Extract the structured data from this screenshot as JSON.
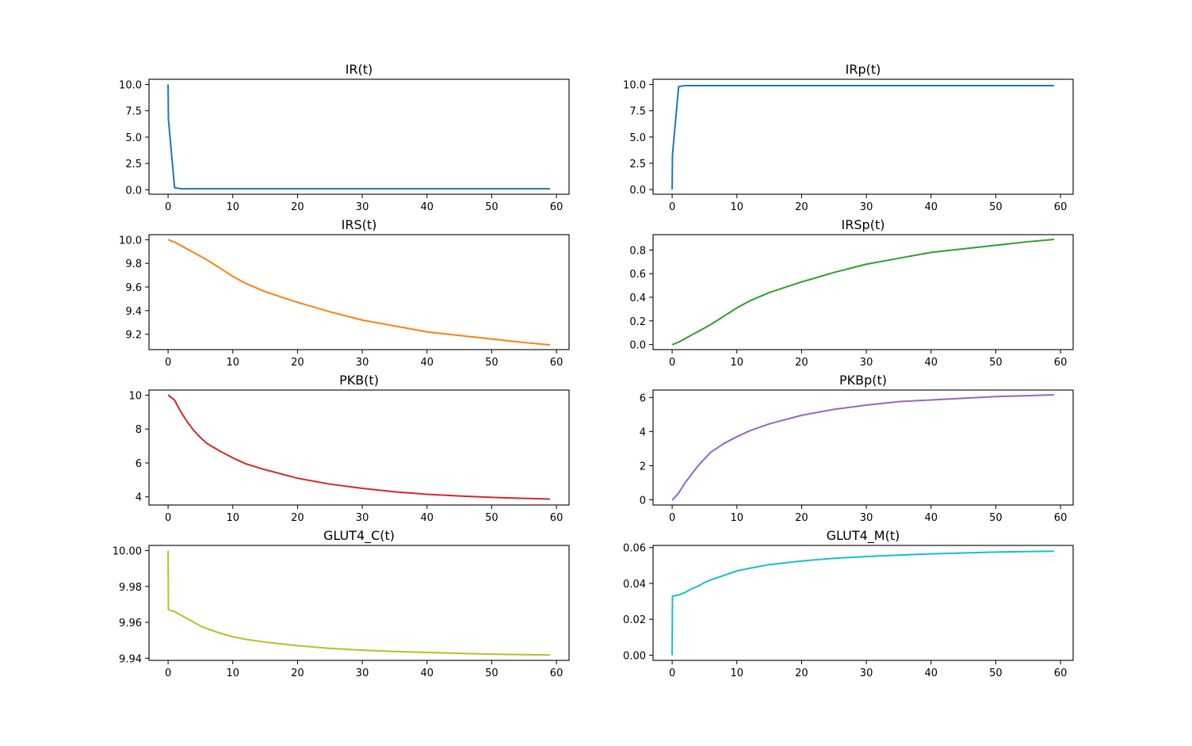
{
  "chart_data": [
    {
      "type": "line",
      "title": "IR(t)",
      "color": "#1f77b4",
      "xlim": [
        -2.95,
        61.95
      ],
      "ylim": [
        -0.42,
        10.49
      ],
      "xticks": [
        0,
        10,
        20,
        30,
        40,
        50,
        60
      ],
      "xtick_labels": [
        "0",
        "10",
        "20",
        "30",
        "40",
        "50",
        "60"
      ],
      "yticks": [
        0,
        2.5,
        5,
        7.5,
        10
      ],
      "ytick_labels": [
        "0.0",
        "2.5",
        "5.0",
        "7.5",
        "10.0"
      ],
      "x": [
        0,
        0.05,
        1,
        2,
        3,
        4,
        5,
        6,
        8,
        10,
        12,
        15,
        20,
        25,
        30,
        35,
        40,
        45,
        50,
        55,
        59
      ],
      "y": [
        10,
        6.7,
        0.2,
        0.1,
        0.1,
        0.1,
        0.1,
        0.1,
        0.1,
        0.1,
        0.1,
        0.1,
        0.1,
        0.1,
        0.1,
        0.1,
        0.1,
        0.1,
        0.1,
        0.1,
        0.1
      ]
    },
    {
      "type": "line",
      "title": "IRp(t)",
      "color": "#1f77b4",
      "xlim": [
        -2.95,
        61.95
      ],
      "ylim": [
        -0.45,
        10.5
      ],
      "xticks": [
        0,
        10,
        20,
        30,
        40,
        50,
        60
      ],
      "xtick_labels": [
        "0",
        "10",
        "20",
        "30",
        "40",
        "50",
        "60"
      ],
      "yticks": [
        0,
        2.5,
        5,
        7.5,
        10
      ],
      "ytick_labels": [
        "0.0",
        "2.5",
        "5.0",
        "7.5",
        "10.0"
      ],
      "x": [
        0,
        0.05,
        1,
        2,
        3,
        4,
        5,
        6,
        8,
        10,
        12,
        15,
        20,
        25,
        30,
        35,
        40,
        45,
        50,
        55,
        59
      ],
      "y": [
        0,
        3.3,
        9.8,
        9.9,
        9.9,
        9.9,
        9.9,
        9.9,
        9.9,
        9.9,
        9.9,
        9.9,
        9.9,
        9.9,
        9.9,
        9.9,
        9.9,
        9.9,
        9.9,
        9.9,
        9.9
      ]
    },
    {
      "type": "line",
      "title": "IRS(t)",
      "color": "#ff7f0e",
      "xlim": [
        -2.95,
        61.95
      ],
      "ylim": [
        9.07,
        10.043
      ],
      "xticks": [
        0,
        10,
        20,
        30,
        40,
        50,
        60
      ],
      "xtick_labels": [
        "0",
        "10",
        "20",
        "30",
        "40",
        "50",
        "60"
      ],
      "yticks": [
        9.2,
        9.4,
        9.6,
        9.8,
        10.0
      ],
      "ytick_labels": [
        "9.2",
        "9.4",
        "9.6",
        "9.8",
        "10.0"
      ],
      "x": [
        0,
        0.05,
        1,
        2,
        3,
        4,
        5,
        6,
        8,
        10,
        12,
        15,
        20,
        25,
        30,
        35,
        40,
        45,
        50,
        55,
        59
      ],
      "y": [
        10,
        10,
        9.98,
        9.95,
        9.92,
        9.89,
        9.86,
        9.83,
        9.76,
        9.69,
        9.63,
        9.56,
        9.47,
        9.39,
        9.32,
        9.27,
        9.22,
        9.19,
        9.16,
        9.13,
        9.11
      ]
    },
    {
      "type": "line",
      "title": "IRSp(t)",
      "color": "#2ca02c",
      "xlim": [
        -2.95,
        61.95
      ],
      "ylim": [
        -0.043,
        0.93
      ],
      "xticks": [
        0,
        10,
        20,
        30,
        40,
        50,
        60
      ],
      "xtick_labels": [
        "0",
        "10",
        "20",
        "30",
        "40",
        "50",
        "60"
      ],
      "yticks": [
        0,
        0.2,
        0.4,
        0.6,
        0.8
      ],
      "ytick_labels": [
        "0.0",
        "0.2",
        "0.4",
        "0.6",
        "0.8"
      ],
      "x": [
        0,
        0.05,
        1,
        2,
        3,
        4,
        5,
        6,
        8,
        10,
        12,
        15,
        20,
        25,
        30,
        35,
        40,
        45,
        50,
        55,
        59
      ],
      "y": [
        0,
        0,
        0.02,
        0.05,
        0.08,
        0.11,
        0.14,
        0.17,
        0.24,
        0.31,
        0.37,
        0.44,
        0.53,
        0.61,
        0.68,
        0.73,
        0.78,
        0.81,
        0.84,
        0.87,
        0.89
      ]
    },
    {
      "type": "line",
      "title": "PKB(t)",
      "color": "#d62728",
      "xlim": [
        -2.95,
        61.95
      ],
      "ylim": [
        3.52,
        10.3
      ],
      "xticks": [
        0,
        10,
        20,
        30,
        40,
        50,
        60
      ],
      "xtick_labels": [
        "0",
        "10",
        "20",
        "30",
        "40",
        "50",
        "60"
      ],
      "yticks": [
        4,
        6,
        8,
        10
      ],
      "ytick_labels": [
        "4",
        "6",
        "8",
        "10"
      ],
      "x": [
        0,
        0.05,
        1,
        2,
        3,
        4,
        5,
        6,
        8,
        10,
        12,
        15,
        20,
        25,
        30,
        35,
        40,
        45,
        50,
        55,
        59
      ],
      "y": [
        10,
        10,
        9.7,
        9.0,
        8.4,
        7.9,
        7.5,
        7.15,
        6.7,
        6.3,
        5.95,
        5.6,
        5.1,
        4.75,
        4.5,
        4.3,
        4.15,
        4.05,
        3.97,
        3.91,
        3.87
      ]
    },
    {
      "type": "line",
      "title": "PKBp(t)",
      "color": "#9467bd",
      "xlim": [
        -2.95,
        61.95
      ],
      "ylim": [
        -0.3,
        6.43
      ],
      "xticks": [
        0,
        10,
        20,
        30,
        40,
        50,
        60
      ],
      "xtick_labels": [
        "0",
        "10",
        "20",
        "30",
        "40",
        "50",
        "60"
      ],
      "yticks": [
        0,
        2,
        4,
        6
      ],
      "ytick_labels": [
        "0",
        "2",
        "4",
        "6"
      ],
      "x": [
        0,
        0.05,
        1,
        2,
        3,
        4,
        5,
        6,
        8,
        10,
        12,
        15,
        20,
        25,
        30,
        35,
        40,
        45,
        50,
        55,
        59
      ],
      "y": [
        0,
        0,
        0.4,
        1.0,
        1.5,
        2.0,
        2.4,
        2.8,
        3.3,
        3.7,
        4.05,
        4.45,
        4.95,
        5.3,
        5.55,
        5.75,
        5.85,
        5.95,
        6.05,
        6.1,
        6.15
      ]
    },
    {
      "type": "line",
      "title": "GLUT4_C(t)",
      "color": "#bcbd22",
      "xlim": [
        -2.95,
        61.95
      ],
      "ylim": [
        9.9388,
        10.0029
      ],
      "xticks": [
        0,
        10,
        20,
        30,
        40,
        50,
        60
      ],
      "xtick_labels": [
        "0",
        "10",
        "20",
        "30",
        "40",
        "50",
        "60"
      ],
      "yticks": [
        9.94,
        9.96,
        9.98,
        10.0
      ],
      "ytick_labels": [
        "9.94",
        "9.96",
        "9.98",
        "10.00"
      ],
      "x": [
        0,
        0.05,
        1,
        2,
        3,
        4,
        5,
        6,
        8,
        10,
        12,
        15,
        20,
        25,
        30,
        35,
        40,
        45,
        50,
        55,
        59
      ],
      "y": [
        10.0,
        9.967,
        9.966,
        9.964,
        9.962,
        9.96,
        9.958,
        9.9565,
        9.954,
        9.952,
        9.9505,
        9.949,
        9.947,
        9.9455,
        9.9445,
        9.9438,
        9.9432,
        9.9427,
        9.9423,
        9.942,
        9.9418
      ]
    },
    {
      "type": "line",
      "title": "GLUT4_M(t)",
      "color": "#17becf",
      "xlim": [
        -2.95,
        61.95
      ],
      "ylim": [
        -0.0029,
        0.0612
      ],
      "xticks": [
        0,
        10,
        20,
        30,
        40,
        50,
        60
      ],
      "xtick_labels": [
        "0",
        "10",
        "20",
        "30",
        "40",
        "50",
        "60"
      ],
      "yticks": [
        0,
        0.02,
        0.04,
        0.06
      ],
      "ytick_labels": [
        "0.00",
        "0.02",
        "0.04",
        "0.06"
      ],
      "x": [
        0,
        0.05,
        1,
        2,
        3,
        4,
        5,
        6,
        8,
        10,
        12,
        15,
        20,
        25,
        30,
        35,
        40,
        45,
        50,
        55,
        59
      ],
      "y": [
        0,
        0.033,
        0.0335,
        0.035,
        0.037,
        0.0385,
        0.0405,
        0.042,
        0.0445,
        0.047,
        0.0485,
        0.0505,
        0.0525,
        0.054,
        0.055,
        0.0558,
        0.0565,
        0.057,
        0.0575,
        0.0578,
        0.058
      ]
    }
  ]
}
